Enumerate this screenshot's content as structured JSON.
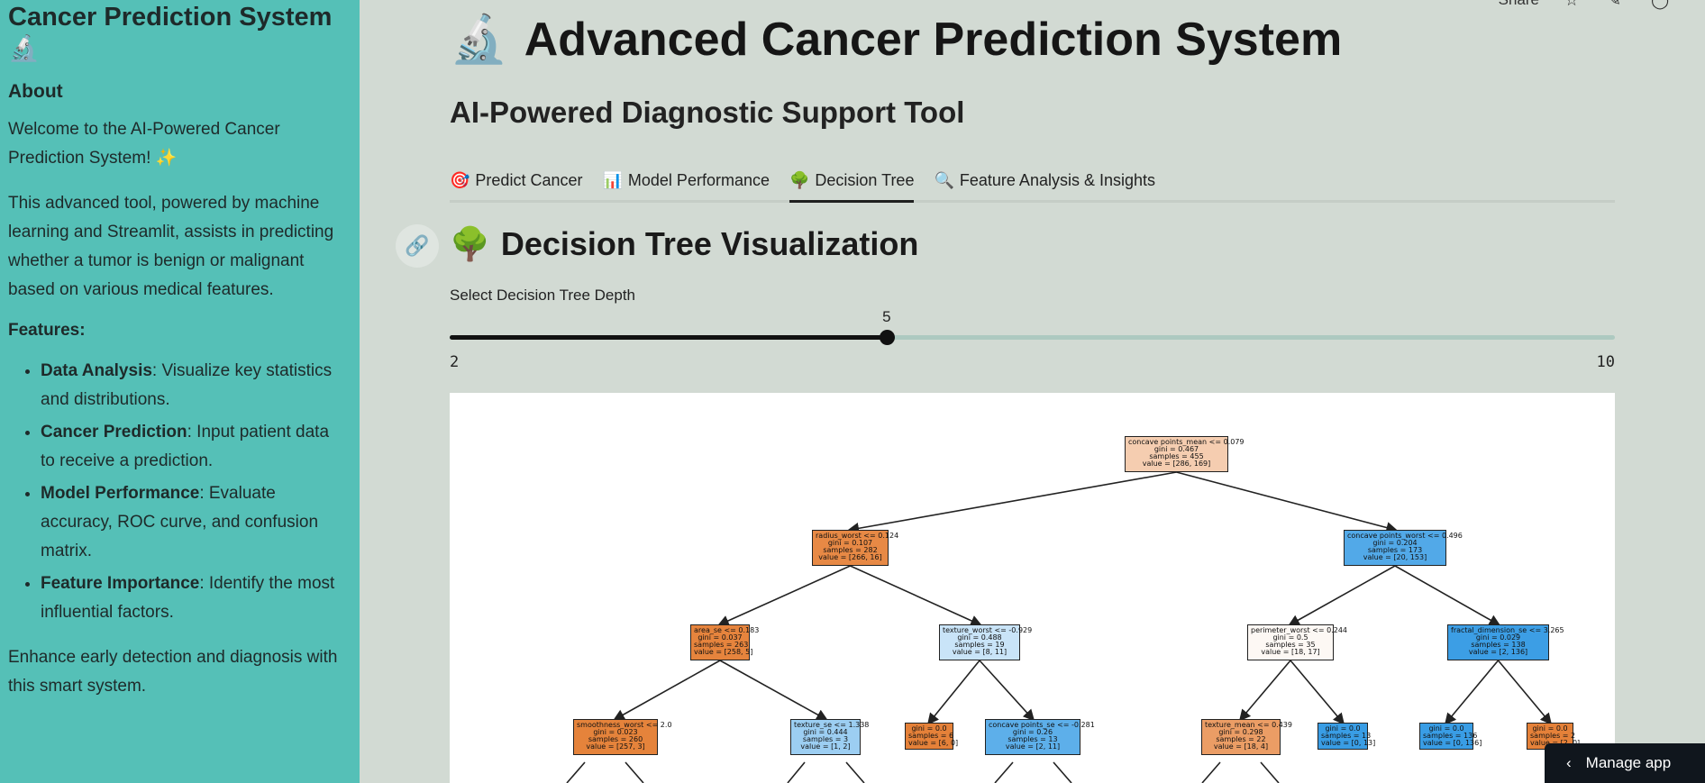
{
  "sidebar": {
    "title": "Cancer Prediction System",
    "title_icon": "🔬",
    "about_heading": "About",
    "welcome": "Welcome to the AI-Powered Cancer Prediction System! ✨",
    "description": "This advanced tool, powered by machine learning and Streamlit, assists in predicting whether a tumor is benign or malignant based on various medical features.",
    "features_heading": "Features:",
    "features": [
      {
        "name": "Data Analysis",
        "text": ": Visualize key statistics and distributions."
      },
      {
        "name": "Cancer Prediction",
        "text": ": Input patient data to receive a prediction."
      },
      {
        "name": "Model Performance",
        "text": ": Evaluate accuracy, ROC curve, and confusion matrix."
      },
      {
        "name": "Feature Importance",
        "text": ": Identify the most influential factors."
      }
    ],
    "footer": "Enhance early detection and diagnosis with this smart system."
  },
  "topbar": {
    "share_label": "Share",
    "star_icon": "star-icon",
    "edit_icon": "pencil-icon",
    "github_icon": "github-icon"
  },
  "header": {
    "icon": "🔬",
    "title": "Advanced Cancer Prediction System",
    "subtitle": "AI-Powered Diagnostic Support Tool"
  },
  "tabs": [
    {
      "icon": "🎯",
      "label": "Predict Cancer",
      "active": false
    },
    {
      "icon": "📊",
      "label": "Model Performance",
      "active": false
    },
    {
      "icon": "🌳",
      "label": "Decision Tree",
      "active": true
    },
    {
      "icon": "🔍",
      "label": "Feature Analysis & Insights",
      "active": false
    }
  ],
  "section": {
    "icon": "🌳",
    "title": "Decision Tree Visualization"
  },
  "slider": {
    "label": "Select Decision Tree Depth",
    "min": 2,
    "max": 10,
    "value": 5
  },
  "tree": {
    "nodes": [
      {
        "id": "n0",
        "lines": [
          "concave points_mean <= 0.079",
          "gini = 0.467",
          "samples = 455",
          "value = [286, 169]"
        ],
        "color": "#f5cdb0"
      },
      {
        "id": "n1",
        "lines": [
          "radius_worst <= 0.124",
          "gini = 0.107",
          "samples = 282",
          "value = [266, 16]"
        ],
        "color": "#e78945"
      },
      {
        "id": "n2",
        "lines": [
          "concave points_worst <= 0.496",
          "gini = 0.204",
          "samples = 173",
          "value = [20, 153]"
        ],
        "color": "#52a9e8"
      },
      {
        "id": "n3",
        "lines": [
          "area_se <= 0.183",
          "gini = 0.037",
          "samples = 263",
          "value = [258, 5]"
        ],
        "color": "#e6843d"
      },
      {
        "id": "n4",
        "lines": [
          "texture_worst <= -0.929",
          "gini = 0.488",
          "samples = 19",
          "value = [8, 11]"
        ],
        "color": "#c9e4f8"
      },
      {
        "id": "n5",
        "lines": [
          "perimeter_worst <= 0.244",
          "gini = 0.5",
          "samples = 35",
          "value = [18, 17]"
        ],
        "color": "#fdf8f4"
      },
      {
        "id": "n6",
        "lines": [
          "fractal_dimension_se <= 3.265",
          "gini = 0.029",
          "samples = 138",
          "value = [2, 136]"
        ],
        "color": "#3c9ee5"
      },
      {
        "id": "n7",
        "lines": [
          "smoothness_worst <= 2.0",
          "gini = 0.023",
          "samples = 260",
          "value = [257, 3]"
        ],
        "color": "#e5833b"
      },
      {
        "id": "n8",
        "lines": [
          "texture_se <= 1.338",
          "gini = 0.444",
          "samples = 3",
          "value = [1, 2]"
        ],
        "color": "#9ccef2"
      },
      {
        "id": "n9",
        "lines": [
          "gini = 0.0",
          "samples = 6",
          "value = [6, 0]"
        ],
        "color": "#e58139"
      },
      {
        "id": "n10",
        "lines": [
          "concave points_se <= -0.281",
          "gini = 0.26",
          "samples = 13",
          "value = [2, 11]"
        ],
        "color": "#5dafea"
      },
      {
        "id": "n11",
        "lines": [
          "texture_mean <= 0.439",
          "gini = 0.298",
          "samples = 22",
          "value = [18, 4]"
        ],
        "color": "#eb9d65"
      },
      {
        "id": "n12",
        "lines": [
          "gini = 0.0",
          "samples = 13",
          "value = [0, 13]"
        ],
        "color": "#399de5"
      },
      {
        "id": "n13",
        "lines": [
          "gini = 0.0",
          "samples = 136",
          "value = [0, 136]"
        ],
        "color": "#399de5"
      },
      {
        "id": "n14",
        "lines": [
          "gini = 0.0",
          "samples = 2",
          "value = [2, 0]"
        ],
        "color": "#e58139"
      }
    ],
    "edges": [
      [
        "n0",
        "n1"
      ],
      [
        "n0",
        "n2"
      ],
      [
        "n1",
        "n3"
      ],
      [
        "n1",
        "n4"
      ],
      [
        "n2",
        "n5"
      ],
      [
        "n2",
        "n6"
      ],
      [
        "n3",
        "n7"
      ],
      [
        "n3",
        "n8"
      ],
      [
        "n4",
        "n9"
      ],
      [
        "n4",
        "n10"
      ],
      [
        "n5",
        "n11"
      ],
      [
        "n5",
        "n12"
      ],
      [
        "n6",
        "n13"
      ],
      [
        "n6",
        "n14"
      ]
    ]
  },
  "manage_app": {
    "label": "Manage app",
    "icon": "chevron-left-icon"
  }
}
